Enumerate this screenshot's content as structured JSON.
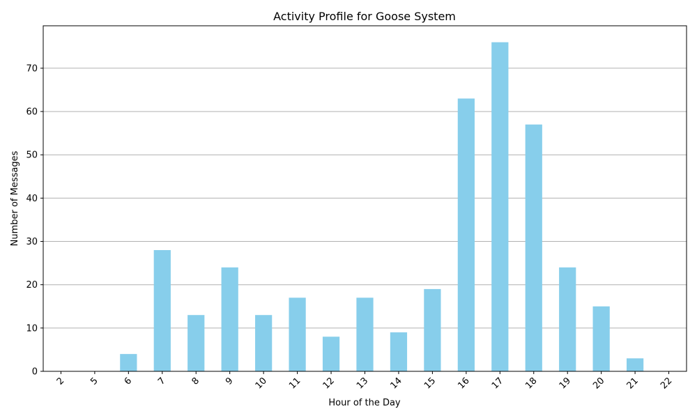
{
  "chart_data": {
    "type": "bar",
    "title": "Activity Profile for Goose System",
    "xlabel": "Hour of the Day",
    "ylabel": "Number of Messages",
    "categories": [
      "2",
      "5",
      "6",
      "7",
      "8",
      "9",
      "10",
      "11",
      "12",
      "13",
      "14",
      "15",
      "16",
      "17",
      "18",
      "19",
      "20",
      "21",
      "22"
    ],
    "values": [
      0,
      0,
      4,
      28,
      13,
      24,
      13,
      17,
      8,
      17,
      9,
      19,
      63,
      76,
      57,
      24,
      15,
      3,
      0
    ],
    "yticks": [
      0,
      10,
      20,
      30,
      40,
      50,
      60,
      70
    ],
    "ylim": [
      0,
      79.8
    ],
    "grid": "y-axis only",
    "x_tick_rotation": "45 degrees",
    "bar_color": "#87ceeb",
    "grid_color": "#b0b0b0",
    "legend": "none"
  }
}
